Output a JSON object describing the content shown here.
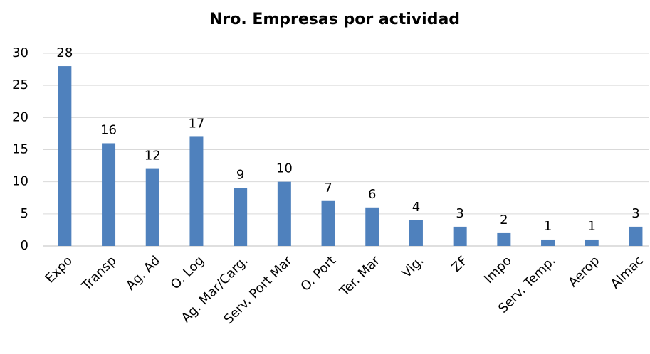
{
  "chart_data": {
    "type": "bar",
    "title": "Nro. Empresas por actividad",
    "categories": [
      "Expo",
      "Transp",
      "Ag. Ad",
      "O. Log",
      "Ag. Mar/Carg.",
      "Serv. Port Mar",
      "O. Port",
      "Ter. Mar",
      "Vig.",
      "ZF",
      "Impo",
      "Serv. Temp.",
      "Aerop",
      "Almac"
    ],
    "values": [
      28,
      16,
      12,
      17,
      9,
      10,
      7,
      6,
      4,
      3,
      2,
      1,
      1,
      3
    ],
    "color": "#4f81bd",
    "ylim": [
      0,
      30
    ],
    "yticks": [
      0,
      5,
      10,
      15,
      20,
      25,
      30
    ],
    "grid": true
  }
}
